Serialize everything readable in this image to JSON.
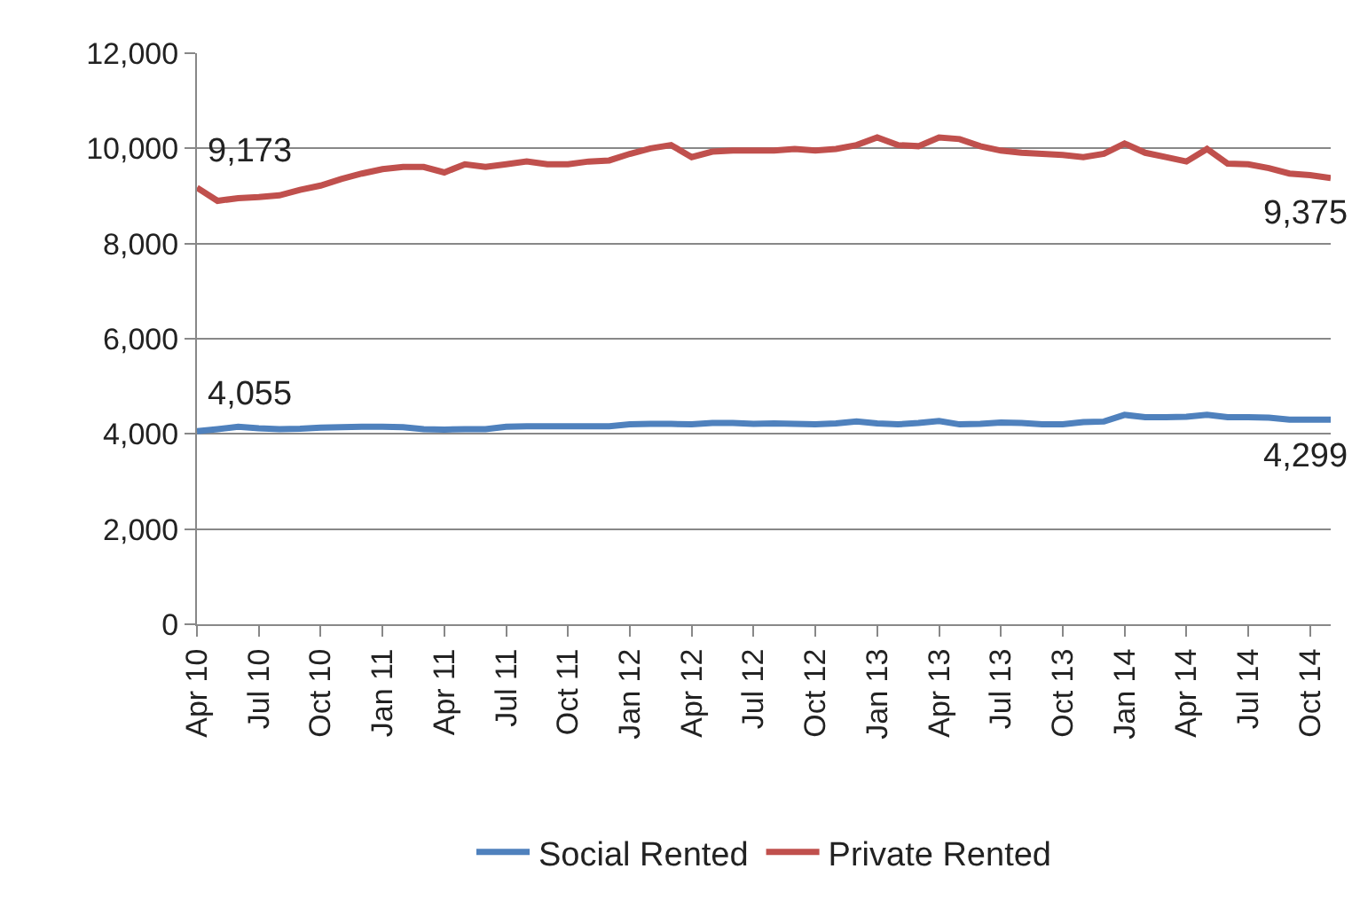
{
  "chart_data": {
    "type": "line",
    "categories": [
      "Apr 10",
      null,
      null,
      "Jul 10",
      null,
      null,
      "Oct 10",
      null,
      null,
      "Jan 11",
      null,
      null,
      "Apr 11",
      null,
      null,
      "Jul 11",
      null,
      null,
      "Oct 11",
      null,
      null,
      "Jan 12",
      null,
      null,
      "Apr 12",
      null,
      null,
      "Jul 12",
      null,
      null,
      "Oct 12",
      null,
      null,
      "Jan 13",
      null,
      null,
      "Apr 13",
      null,
      null,
      "Jul 13",
      null,
      null,
      "Oct 13",
      null,
      null,
      "Jan 14",
      null,
      null,
      "Apr 14",
      null,
      null,
      "Jul 14",
      null,
      null,
      "Oct 14",
      null
    ],
    "series": [
      {
        "name": "Social Rented",
        "color": "#4f81bd",
        "values": [
          4055,
          4100,
          4150,
          4120,
          4100,
          4110,
          4130,
          4140,
          4150,
          4150,
          4140,
          4100,
          4090,
          4100,
          4100,
          4150,
          4160,
          4160,
          4160,
          4160,
          4160,
          4200,
          4210,
          4210,
          4200,
          4230,
          4230,
          4210,
          4220,
          4210,
          4200,
          4220,
          4260,
          4220,
          4200,
          4230,
          4270,
          4200,
          4210,
          4240,
          4230,
          4200,
          4200,
          4250,
          4260,
          4400,
          4350,
          4350,
          4360,
          4400,
          4350,
          4350,
          4340,
          4300,
          4300,
          4299
        ],
        "value_labels": [
          "4,055",
          null,
          null,
          null,
          null,
          null,
          null,
          null,
          null,
          null,
          null,
          null,
          null,
          null,
          null,
          null,
          null,
          null,
          null,
          null,
          null,
          null,
          null,
          null,
          null,
          null,
          null,
          null,
          null,
          null,
          null,
          null,
          null,
          null,
          null,
          null,
          null,
          null,
          null,
          null,
          null,
          null,
          null,
          null,
          null,
          null,
          null,
          null,
          null,
          null,
          null,
          null,
          null,
          null,
          null,
          "4,299"
        ]
      },
      {
        "name": "Private Rented",
        "color": "#c0504d",
        "values": [
          9173,
          8897,
          8955,
          8977,
          9012,
          9127,
          9218,
          9356,
          9471,
          9563,
          9610,
          9610,
          9494,
          9666,
          9610,
          9666,
          9724,
          9666,
          9666,
          9724,
          9747,
          9885,
          10000,
          10069,
          9816,
          9931,
          9954,
          9954,
          9954,
          9989,
          9954,
          9989,
          10069,
          10230,
          10069,
          10046,
          10230,
          10195,
          10046,
          9954,
          9908,
          9885,
          9862,
          9816,
          9885,
          10103,
          9908,
          9816,
          9724,
          9989,
          9678,
          9666,
          9586,
          9471,
          9437,
          9375
        ],
        "value_labels": [
          "9,173",
          null,
          null,
          null,
          null,
          null,
          null,
          null,
          null,
          null,
          null,
          null,
          null,
          null,
          null,
          null,
          null,
          null,
          null,
          null,
          null,
          null,
          null,
          null,
          null,
          null,
          null,
          null,
          null,
          null,
          null,
          null,
          null,
          null,
          null,
          null,
          null,
          null,
          null,
          null,
          null,
          null,
          null,
          null,
          null,
          null,
          null,
          null,
          null,
          null,
          null,
          null,
          null,
          null,
          null,
          "9,375"
        ]
      }
    ],
    "ylim": [
      0,
      12000
    ],
    "yticks": [
      0,
      {
        "value": 2000,
        "label": "2,000"
      },
      {
        "value": 4000,
        "label": "4,000"
      },
      {
        "value": 6000,
        "label": "6,000"
      },
      {
        "value": 8000,
        "label": "8,000"
      },
      {
        "value": 10000,
        "label": "10,000"
      },
      {
        "value": 12000,
        "label": "12,000"
      }
    ],
    "grid": "y",
    "legend": "bottom",
    "marker": "none",
    "line_style": "solid"
  }
}
